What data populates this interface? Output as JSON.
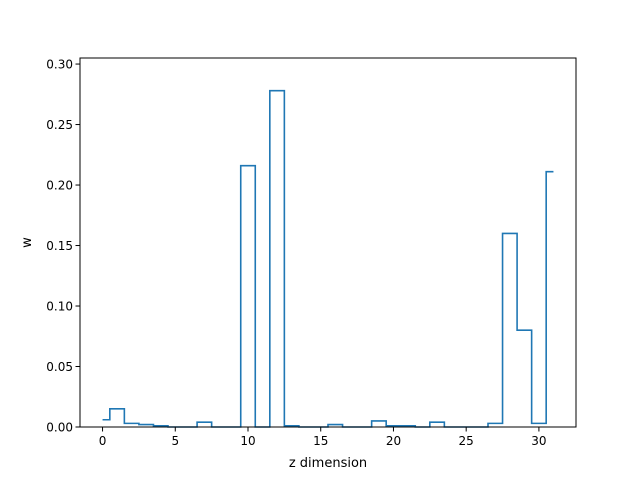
{
  "chart_data": {
    "type": "line",
    "style": "step",
    "title": "",
    "xlabel": "z dimension",
    "ylabel": "w",
    "xlim": [
      -1.55,
      32.55
    ],
    "ylim": [
      0.0,
      0.305
    ],
    "grid": false,
    "x_ticks": [
      0,
      5,
      10,
      15,
      20,
      25,
      30
    ],
    "x_tick_labels": [
      "0",
      "5",
      "10",
      "15",
      "20",
      "25",
      "30"
    ],
    "y_ticks": [
      0.0,
      0.05,
      0.1,
      0.15,
      0.2,
      0.25,
      0.3
    ],
    "y_tick_labels": [
      "0.00",
      "0.05",
      "0.10",
      "0.15",
      "0.20",
      "0.25",
      "0.30"
    ],
    "series": [
      {
        "color": "#1f77b4",
        "x": [
          0,
          1,
          2,
          3,
          4,
          5,
          6,
          7,
          8,
          9,
          10,
          11,
          12,
          13,
          14,
          15,
          16,
          17,
          18,
          19,
          20,
          21,
          22,
          23,
          24,
          25,
          26,
          27,
          28,
          29,
          30,
          31
        ],
        "values": [
          0.006,
          0.015,
          0.003,
          0.002,
          0.001,
          0.0,
          0.0,
          0.004,
          0.0,
          0.0,
          0.216,
          0.0,
          0.278,
          0.001,
          0.0,
          0.0,
          0.002,
          0.0,
          0.0,
          0.005,
          0.001,
          0.001,
          0.0,
          0.004,
          0.0,
          0.0,
          0.0,
          0.003,
          0.16,
          0.08,
          0.003,
          0.211
        ]
      }
    ]
  }
}
